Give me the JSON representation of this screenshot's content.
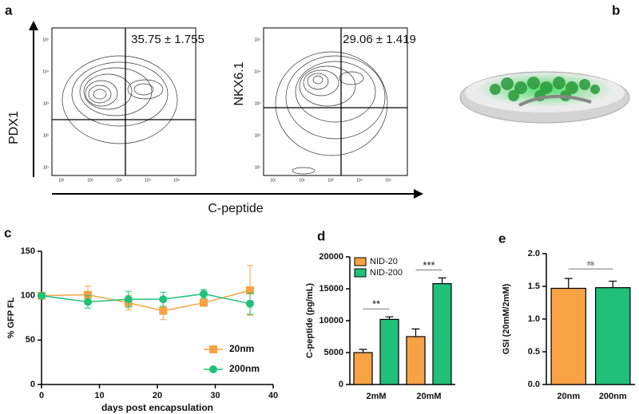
{
  "panel_a": {
    "label": "a",
    "y1_label": "PDX1",
    "y2_label": "NKX6.1",
    "x_label": "C-peptide",
    "value1": "35.75 ± 1.755",
    "value2": "29.06 ± 1.419",
    "ticks": [
      "10¹",
      "10²",
      "10³",
      "10⁴",
      "10⁵"
    ]
  },
  "panel_b": {
    "label": "b"
  },
  "chart_data": [
    {
      "type": "line",
      "label": "c",
      "xlabel": "days post encapsulation",
      "ylabel": "% GFP FL",
      "x": [
        0,
        8,
        15,
        21,
        28,
        36
      ],
      "series": [
        {
          "name": "20nm",
          "color": "#f7a345",
          "marker": "square",
          "values": [
            100,
            101,
            92,
            83,
            92,
            106
          ],
          "errors": [
            0,
            10,
            8,
            10,
            3,
            28
          ]
        },
        {
          "name": "200nm",
          "color": "#21c07a",
          "marker": "circle",
          "values": [
            100,
            93,
            96,
            96,
            102,
            91
          ],
          "errors": [
            0,
            7,
            9,
            8,
            5,
            12
          ]
        }
      ],
      "xlim": [
        0,
        40
      ],
      "xticks": [
        0,
        10,
        20,
        30,
        40
      ],
      "ylim": [
        0,
        150
      ],
      "yticks": [
        0,
        50,
        100,
        150
      ],
      "legend": "lower right"
    },
    {
      "type": "bar",
      "label": "d",
      "ylabel": "C-peptide (pg/mL)",
      "categories": [
        "2mM",
        "20mM"
      ],
      "series": [
        {
          "name": "NID-20",
          "color": "#f7a345",
          "values": [
            5000,
            7500
          ],
          "errors": [
            500,
            1200
          ]
        },
        {
          "name": "NID-200",
          "color": "#21c07a",
          "values": [
            10200,
            15800
          ],
          "errors": [
            400,
            900
          ]
        }
      ],
      "ylim": [
        0,
        20000
      ],
      "yticks": [
        0,
        5000,
        10000,
        15000,
        20000
      ],
      "annotations": [
        "**",
        "***"
      ],
      "legend": "upper left"
    },
    {
      "type": "bar",
      "label": "e",
      "ylabel": "GSI (20mM/2mM)",
      "categories": [
        "20nm",
        "200nm"
      ],
      "values": [
        1.47,
        1.48
      ],
      "errors": [
        0.15,
        0.1
      ],
      "colors": [
        "#f7a345",
        "#21c07a"
      ],
      "ylim": [
        0,
        2
      ],
      "yticks": [
        {
          "value": 0,
          "label": "0.0"
        },
        0.5,
        {
          "value": 1,
          "label": "1.0"
        },
        1.5,
        {
          "value": 2,
          "label": "2.0"
        }
      ],
      "annotations": [
        "ns"
      ]
    }
  ]
}
